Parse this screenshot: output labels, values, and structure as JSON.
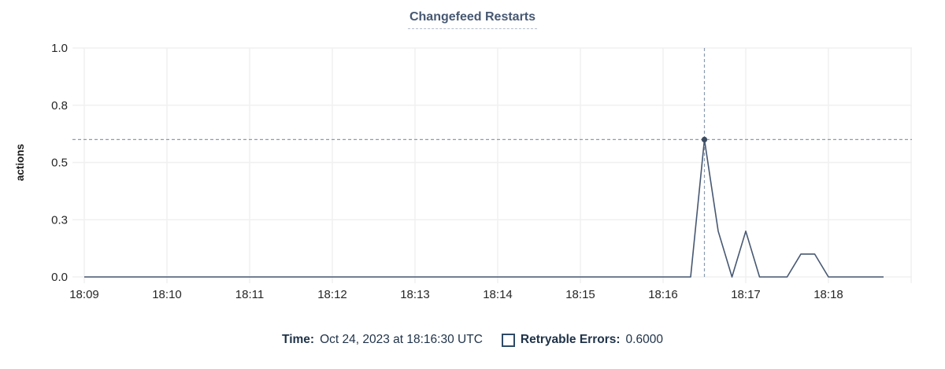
{
  "title": "Changefeed Restarts",
  "legend": {
    "time_label": "Time:",
    "time_value": "Oct 24, 2023 at 18:16:30 UTC",
    "series_label": "Retryable Errors:",
    "series_value": "0.6000"
  },
  "chart_data": {
    "type": "line",
    "title": "Changefeed Restarts",
    "ylabel": "actions",
    "xlabel": "",
    "ylim": [
      0,
      1.0
    ],
    "grid": true,
    "legend_position": "bottom",
    "y_ticks": [
      {
        "v": 0,
        "label": "0.0"
      },
      {
        "v": 0.25,
        "label": "0.3"
      },
      {
        "v": 0.5,
        "label": "0.5"
      },
      {
        "v": 0.75,
        "label": "0.8"
      },
      {
        "v": 1.0,
        "label": "1.0"
      }
    ],
    "x_ticks": [
      {
        "minute": 0,
        "label": "18:09"
      },
      {
        "minute": 1,
        "label": "18:10"
      },
      {
        "minute": 2,
        "label": "18:11"
      },
      {
        "minute": 3,
        "label": "18:12"
      },
      {
        "minute": 4,
        "label": "18:13"
      },
      {
        "minute": 5,
        "label": "18:14"
      },
      {
        "minute": 6,
        "label": "18:15"
      },
      {
        "minute": 7,
        "label": "18:16"
      },
      {
        "minute": 8,
        "label": "18:17"
      },
      {
        "minute": 9,
        "label": "18:18"
      },
      {
        "minute": 10,
        "label": ""
      }
    ],
    "series": [
      {
        "name": "Retryable Errors",
        "start_time": "18:09:00",
        "interval_seconds": 10,
        "values": [
          0,
          0,
          0,
          0,
          0,
          0,
          0,
          0,
          0,
          0,
          0,
          0,
          0,
          0,
          0,
          0,
          0,
          0,
          0,
          0,
          0,
          0,
          0,
          0,
          0,
          0,
          0,
          0,
          0,
          0,
          0,
          0,
          0,
          0,
          0,
          0,
          0,
          0,
          0,
          0,
          0,
          0,
          0,
          0,
          0,
          0.6,
          0.2,
          0,
          0.2,
          0,
          0,
          0,
          0.1,
          0.1,
          0,
          0,
          0,
          0,
          0
        ]
      }
    ],
    "crosshair": {
      "time": "18:16:30",
      "value": 0.6
    }
  },
  "colors": {
    "line": "#475872",
    "dot": "#3d4b61",
    "crosshair": "#8a9bb0",
    "grid": "#f0f0f0",
    "axis_text": "#262626",
    "title_text": "#475872",
    "legend_text": "#1e3248",
    "swatch_border": "#2f4a66"
  }
}
